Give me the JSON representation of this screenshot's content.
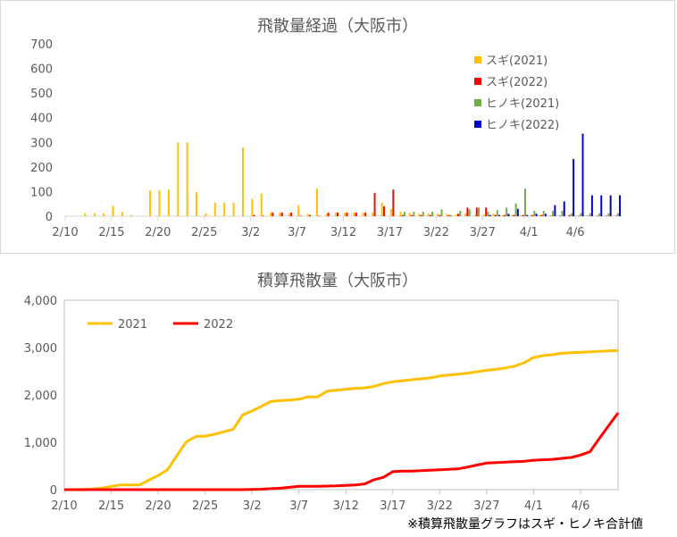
{
  "chart_data": [
    {
      "type": "bar",
      "title": "飛散量経過（大阪市）",
      "ylim": [
        0,
        700
      ],
      "yticks": [
        "700",
        "600",
        "500",
        "400",
        "300",
        "200",
        "100",
        "0"
      ],
      "ytick_values": [
        700,
        600,
        500,
        400,
        300,
        200,
        100,
        0
      ],
      "xticks": [
        "2/10",
        "2/15",
        "2/20",
        "2/25",
        "3/2",
        "3/7",
        "3/12",
        "3/17",
        "3/22",
        "3/27",
        "4/1",
        "4/6"
      ],
      "legend_position": "top-right",
      "series": [
        {
          "name": "スギ(2021)",
          "color": "#ffc000",
          "values": [
            2,
            0,
            12,
            12,
            12,
            42,
            18,
            5,
            0,
            105,
            105,
            108,
            300,
            300,
            98,
            12,
            55,
            55,
            55,
            280,
            70,
            92,
            15,
            15,
            12,
            45,
            10,
            112,
            10,
            15,
            15,
            15,
            15,
            15,
            55,
            30,
            18,
            15,
            10,
            12,
            10,
            10,
            8,
            12,
            5,
            8,
            10,
            5,
            5,
            5,
            5,
            5,
            2,
            0,
            0,
            0,
            0,
            0,
            0,
            0
          ]
        },
        {
          "name": "スギ(2022)",
          "color": "#ff0000",
          "values": [
            0,
            0,
            0,
            0,
            0,
            0,
            0,
            0,
            0,
            0,
            0,
            0,
            0,
            0,
            0,
            0,
            0,
            0,
            0,
            0,
            5,
            2,
            15,
            15,
            15,
            2,
            5,
            2,
            15,
            15,
            15,
            15,
            15,
            95,
            40,
            108,
            5,
            5,
            5,
            5,
            5,
            5,
            10,
            35,
            35,
            35,
            5,
            5,
            5,
            5,
            5,
            5,
            2,
            2,
            5,
            2,
            2,
            2,
            2,
            2
          ]
        },
        {
          "name": "ヒノキ(2021)",
          "color": "#70ad47",
          "values": [
            0,
            0,
            0,
            0,
            0,
            0,
            0,
            0,
            0,
            0,
            0,
            0,
            0,
            0,
            0,
            0,
            0,
            0,
            0,
            0,
            0,
            0,
            0,
            0,
            0,
            0,
            0,
            0,
            0,
            0,
            0,
            0,
            0,
            0,
            0,
            0,
            18,
            18,
            18,
            18,
            28,
            5,
            22,
            28,
            35,
            18,
            25,
            35,
            52,
            112,
            22,
            22,
            22,
            22,
            12,
            12,
            12,
            12,
            12,
            12
          ]
        },
        {
          "name": "ヒノキ(2022)",
          "color": "#0000cc",
          "values": [
            0,
            0,
            0,
            0,
            0,
            0,
            0,
            0,
            0,
            0,
            0,
            0,
            0,
            0,
            0,
            0,
            0,
            0,
            0,
            0,
            0,
            0,
            0,
            0,
            0,
            0,
            0,
            0,
            0,
            0,
            0,
            0,
            0,
            0,
            0,
            0,
            0,
            0,
            0,
            0,
            0,
            0,
            0,
            0,
            0,
            5,
            5,
            10,
            30,
            5,
            10,
            10,
            45,
            60,
            232,
            335,
            85,
            85,
            85,
            85
          ]
        }
      ]
    },
    {
      "type": "line",
      "title": "積算飛散量（大阪市）",
      "ylim": [
        0,
        4000
      ],
      "yticks": [
        "4,000",
        "3,000",
        "2,000",
        "1,000",
        "0"
      ],
      "ytick_values": [
        4000,
        3000,
        2000,
        1000,
        0
      ],
      "xticks": [
        "2/10",
        "2/15",
        "2/20",
        "2/25",
        "3/2",
        "3/7",
        "3/12",
        "3/17",
        "3/22",
        "3/27",
        "4/1",
        "4/6"
      ],
      "legend_position": "top-left",
      "series": [
        {
          "name": "2021",
          "color": "#ffc000",
          "values": [
            0,
            0,
            5,
            15,
            30,
            70,
            100,
            100,
            100,
            200,
            300,
            420,
            720,
            1010,
            1120,
            1130,
            1170,
            1220,
            1275,
            1580,
            1660,
            1760,
            1860,
            1880,
            1890,
            1910,
            1960,
            1960,
            2080,
            2100,
            2120,
            2140,
            2150,
            2180,
            2240,
            2280,
            2300,
            2320,
            2340,
            2360,
            2400,
            2420,
            2440,
            2460,
            2490,
            2520,
            2540,
            2570,
            2610,
            2680,
            2790,
            2830,
            2850,
            2880,
            2890,
            2900,
            2910,
            2920,
            2930,
            2935
          ]
        },
        {
          "name": "2022",
          "color": "#ff0000",
          "values": [
            0,
            0,
            0,
            0,
            0,
            0,
            0,
            0,
            0,
            0,
            0,
            0,
            0,
            0,
            0,
            0,
            0,
            0,
            0,
            0,
            5,
            10,
            20,
            30,
            50,
            70,
            70,
            70,
            75,
            80,
            90,
            100,
            120,
            210,
            260,
            380,
            390,
            390,
            400,
            410,
            420,
            430,
            440,
            480,
            520,
            560,
            570,
            580,
            590,
            600,
            620,
            630,
            640,
            660,
            680,
            730,
            800,
            1080,
            1350,
            1620
          ]
        }
      ]
    }
  ],
  "note": "※積算飛散量グラフはスギ・ヒノキ合計値"
}
